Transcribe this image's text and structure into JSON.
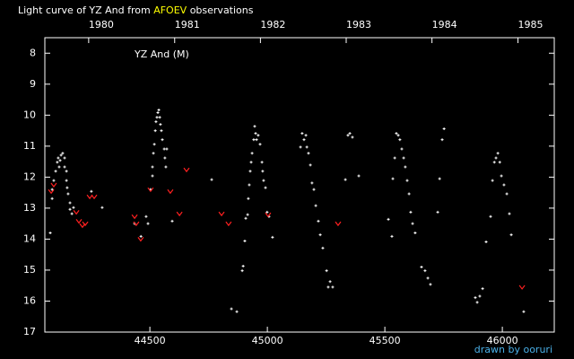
{
  "chart_data": {
    "type": "scatter",
    "title_parts": [
      "Light curve of YZ And from",
      "AFOEV",
      "observations"
    ],
    "annotation": "YZ And (M)",
    "credit": "drawn by ooruri",
    "xlim": [
      44053,
      46221
    ],
    "ylim": [
      17,
      7.5
    ],
    "xticks": [
      44500,
      45000,
      45500,
      46000
    ],
    "yticks": [
      8,
      9,
      10,
      11,
      12,
      13,
      14,
      15,
      16,
      17
    ],
    "x2ticks": [
      {
        "value": 44239.5,
        "label": "1980"
      },
      {
        "value": 44605.5,
        "label": "1981"
      },
      {
        "value": 44970.5,
        "label": "1982"
      },
      {
        "value": 45335.5,
        "label": "1983"
      },
      {
        "value": 45700.5,
        "label": "1984"
      },
      {
        "value": 46066.5,
        "label": "1985"
      }
    ],
    "series": [
      {
        "color": "#ffffff",
        "marker": "dot",
        "x": [
          44076,
          44084,
          44084,
          44091,
          44099,
          44106,
          44110,
          44114,
          44118,
          44122,
          44129,
          44137,
          44137,
          44145,
          44145,
          44148,
          44152,
          44160,
          44160,
          44168,
          44175,
          44251,
          44297,
          44435,
          44462,
          44484,
          44492,
          44503,
          44511,
          44511,
          44515,
          44519,
          44523,
          44526,
          44530,
          44534,
          44538,
          44542,
          44545,
          44549,
          44553,
          44561,
          44564,
          44568,
          44572,
          44595,
          44763,
          44847,
          44870,
          44893,
          44897,
          44904,
          44908,
          44916,
          44919,
          44923,
          44927,
          44931,
          44935,
          44942,
          44946,
          44950,
          44954,
          44961,
          44969,
          44977,
          44980,
          44984,
          44992,
          44999,
          45007,
          45022,
          45141,
          45148,
          45156,
          45164,
          45168,
          45175,
          45183,
          45190,
          45198,
          45206,
          45217,
          45225,
          45236,
          45252,
          45259,
          45267,
          45278,
          45332,
          45343,
          45351,
          45362,
          45389,
          45515,
          45530,
          45534,
          45542,
          45549,
          45557,
          45564,
          45572,
          45580,
          45587,
          45595,
          45603,
          45610,
          45618,
          45629,
          45656,
          45671,
          45683,
          45694,
          45725,
          45733,
          45744,
          45752,
          45885,
          45893,
          45904,
          45916,
          45931,
          45950,
          45958,
          45966,
          45973,
          45981,
          45989,
          45996,
          46007,
          46019,
          46030,
          46038,
          46091
        ],
        "values": [
          13.8,
          12.4,
          12.69,
          12.11,
          11.81,
          11.52,
          11.38,
          11.67,
          11.46,
          11.29,
          11.23,
          11.38,
          11.67,
          11.81,
          12.11,
          12.34,
          12.54,
          12.83,
          13.04,
          13.18,
          12.98,
          12.46,
          12.98,
          13.5,
          13.91,
          13.27,
          13.5,
          12.4,
          11.96,
          11.67,
          11.23,
          10.94,
          10.5,
          10.21,
          10.07,
          9.92,
          9.83,
          10.07,
          10.3,
          10.5,
          10.79,
          11.09,
          11.38,
          11.67,
          11.09,
          13.42,
          12.08,
          16.25,
          16.34,
          15.02,
          14.87,
          14.06,
          13.33,
          13.21,
          12.69,
          12.25,
          11.81,
          11.52,
          11.23,
          10.79,
          10.36,
          10.59,
          10.79,
          10.65,
          10.94,
          11.52,
          11.81,
          12.11,
          12.34,
          13.13,
          13.27,
          13.94,
          11.03,
          10.59,
          10.79,
          10.65,
          11.03,
          11.23,
          11.61,
          12.19,
          12.4,
          12.92,
          13.42,
          13.86,
          14.29,
          15.02,
          15.55,
          15.37,
          15.55,
          12.08,
          10.65,
          10.59,
          10.71,
          11.96,
          13.36,
          13.91,
          12.05,
          11.38,
          10.59,
          10.65,
          10.79,
          11.09,
          11.38,
          11.67,
          12.11,
          12.54,
          13.13,
          13.5,
          13.8,
          14.9,
          15.02,
          15.26,
          15.46,
          13.13,
          12.05,
          10.79,
          10.44,
          15.89,
          16.04,
          15.84,
          15.6,
          14.09,
          13.27,
          12.11,
          11.52,
          11.38,
          11.23,
          11.52,
          11.96,
          12.25,
          12.54,
          13.18,
          13.86,
          16.34
        ]
      },
      {
        "color": "#ff2020",
        "marker": "vee",
        "x": [
          44080,
          44091,
          44187,
          44198,
          44213,
          44225,
          44244,
          44263,
          44435,
          44442,
          44461,
          44503,
          44587,
          44626,
          44656,
          44805,
          44835,
          45003,
          45301,
          46084
        ],
        "values": [
          12.46,
          12.25,
          13.13,
          13.42,
          13.56,
          13.5,
          12.63,
          12.63,
          13.27,
          13.5,
          14.0,
          12.4,
          12.46,
          13.18,
          11.76,
          13.18,
          13.5,
          13.21,
          13.5,
          15.55
        ]
      }
    ]
  }
}
